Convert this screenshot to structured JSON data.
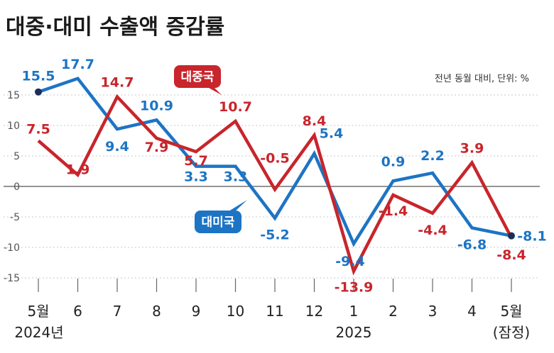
{
  "title": "대중·대미 수출액 증감률",
  "unit_note": "전년 동월 대비, 단위: %",
  "colors": {
    "china": "#c8252c",
    "usa": "#1d74c4",
    "axis": "#555555",
    "grid": "#cccccc"
  },
  "chart_data": {
    "type": "line",
    "title": "대중·대미 수출액 증감률",
    "categories": [
      "5월",
      "6",
      "7",
      "8",
      "9",
      "10",
      "11",
      "12",
      "1",
      "2",
      "3",
      "4",
      "5월"
    ],
    "sublabels": {
      "first": "2024년",
      "ninth": "2025",
      "last": "(잠정)"
    },
    "ylim": [
      -18,
      18
    ],
    "yticks": [
      15,
      10,
      5,
      0,
      -5,
      -10,
      -15
    ],
    "grid": "horizontal dotted",
    "series": [
      {
        "name": "대중국",
        "color": "#c8252c",
        "values": [
          7.5,
          1.9,
          14.7,
          7.9,
          5.7,
          10.7,
          -0.5,
          8.4,
          -13.9,
          -1.4,
          -4.4,
          3.9,
          -8.4
        ],
        "labels": [
          "7.5",
          "1.9",
          "14.7",
          "7.9",
          "5.7",
          "10.7",
          "-0.5",
          "8.4",
          "-13.9",
          "-1.4",
          "-4.4",
          "3.9",
          "-8.4"
        ]
      },
      {
        "name": "대미국",
        "color": "#1d74c4",
        "values": [
          15.5,
          17.7,
          9.4,
          10.9,
          3.3,
          3.3,
          -5.2,
          5.4,
          -9.4,
          0.9,
          2.2,
          -6.8,
          -8.1
        ],
        "labels": [
          "15.5",
          "17.7",
          "9.4",
          "10.9",
          "3.3",
          "3.3",
          "-5.2",
          "5.4",
          "-9.4",
          "0.9",
          "2.2",
          "-6.8",
          "-8.1"
        ]
      }
    ]
  }
}
